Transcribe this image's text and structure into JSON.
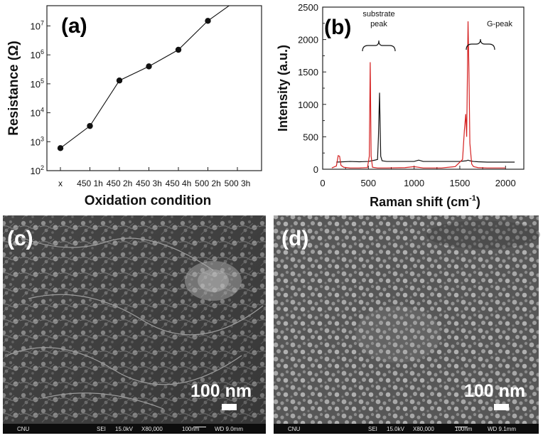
{
  "panels": {
    "a": {
      "tag": "(a)"
    },
    "b": {
      "tag": "(b)"
    },
    "c": {
      "tag": "(c)",
      "scalebar": "100 nm"
    },
    "d": {
      "tag": "(d)",
      "scalebar": "100 nm"
    }
  },
  "sem": {
    "c": {
      "org": "CNU",
      "mode": "SEI",
      "kv": "15.0kV",
      "mag": "X80,000",
      "bar": "100nm",
      "wd": "WD 9.0mm"
    },
    "d": {
      "org": "CNU",
      "mode": "SEI",
      "kv": "15.0kV",
      "mag": "X80,000",
      "bar": "100nm",
      "wd": "WD 9.1mm"
    }
  },
  "chart_data": [
    {
      "type": "line",
      "xlabel": "Oxidation condition",
      "ylabel": "Resistance (Ω)",
      "yscale": "log",
      "ylim": [
        100,
        50000000
      ],
      "categories": [
        "x",
        "450 1h",
        "450 2h",
        "450 3h",
        "450 4h",
        "500 2h",
        "500 3h"
      ],
      "series": [
        {
          "values": [
            600,
            3500,
            130000,
            400000,
            1500000,
            15000000,
            80000000
          ]
        }
      ],
      "yticks": [
        {
          "base": "10",
          "exp": "2"
        },
        {
          "base": "10",
          "exp": "3"
        },
        {
          "base": "10",
          "exp": "4"
        },
        {
          "base": "10",
          "exp": "5"
        },
        {
          "base": "10",
          "exp": "6"
        },
        {
          "base": "10",
          "exp": "7"
        }
      ],
      "colors": {
        "line": "#111111"
      }
    },
    {
      "type": "line",
      "xlabel": "Raman shift (cm",
      "xlabel_sup": "-1",
      "xlabel_end": ")",
      "ylabel": "Intensity (a.u.)",
      "xlim": [
        0,
        2200
      ],
      "ylim": [
        0,
        2500
      ],
      "xticks": [
        "0",
        "500",
        "1000",
        "1500",
        "2000"
      ],
      "yticks": [
        "0",
        "500",
        "1000",
        "1500",
        "2000",
        "2500"
      ],
      "annotations": {
        "substrate_line1": "substrate",
        "substrate_line2": "peak",
        "gpeak": "G-peak"
      },
      "series": [
        {
          "color": "#111111",
          "x": [
            150,
            300,
            400,
            500,
            570,
            600,
            610,
            622,
            635,
            650,
            700,
            800,
            1000,
            1050,
            1100,
            1200,
            1350,
            1500,
            1570,
            1590,
            1610,
            1650,
            1700,
            1800,
            2000,
            2100
          ],
          "y": [
            110,
            120,
            115,
            120,
            140,
            150,
            500,
            1180,
            200,
            130,
            120,
            120,
            120,
            140,
            120,
            120,
            120,
            120,
            130,
            140,
            130,
            120,
            115,
            110,
            110,
            110
          ]
        },
        {
          "color": "#d42020",
          "x": [
            100,
            150,
            170,
            185,
            200,
            230,
            300,
            400,
            490,
            510,
            520,
            530,
            545,
            600,
            700,
            900,
            1000,
            1100,
            1300,
            1450,
            1530,
            1550,
            1565,
            1575,
            1590,
            1600,
            1610,
            1630,
            1650,
            1700,
            1800,
            2000
          ],
          "y": [
            20,
            50,
            210,
            200,
            60,
            30,
            20,
            20,
            25,
            200,
            1650,
            200,
            30,
            20,
            20,
            25,
            40,
            20,
            20,
            40,
            150,
            600,
            850,
            500,
            2280,
            1500,
            400,
            80,
            40,
            25,
            20,
            20
          ]
        }
      ]
    }
  ]
}
